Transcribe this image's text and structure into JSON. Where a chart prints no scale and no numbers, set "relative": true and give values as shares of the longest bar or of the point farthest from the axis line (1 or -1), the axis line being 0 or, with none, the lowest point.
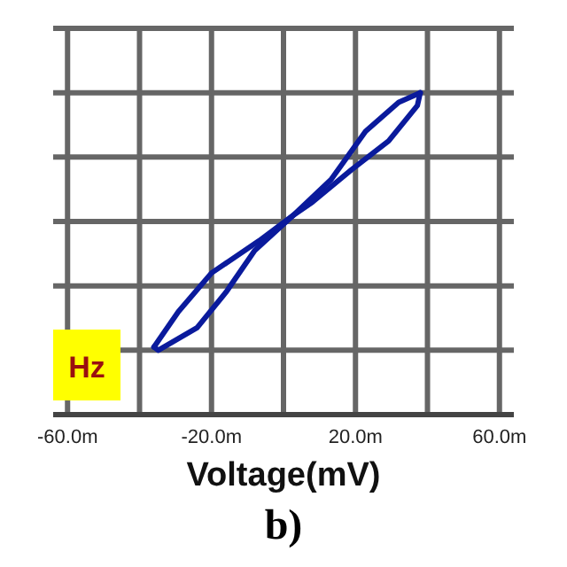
{
  "chart_data": {
    "type": "line",
    "xlabel": "Voltage(mV)",
    "relative": true,
    "grid": true,
    "marker": "none",
    "line_style": "solid",
    "xlim": [
      -64,
      64
    ],
    "xticks": [
      {
        "value": -60,
        "label": "-60.0m"
      },
      {
        "value": -40,
        "label": null
      },
      {
        "value": -20,
        "label": "-20.0m"
      },
      {
        "value": 0,
        "label": null
      },
      {
        "value": 20,
        "label": "20.0m"
      },
      {
        "value": 40,
        "label": null
      },
      {
        "value": 60,
        "label": "60.0m"
      }
    ],
    "series": [
      {
        "color": "#0a1a9c",
        "x": [
          -36,
          -29.2,
          -20,
          -6.8,
          2.8,
          13.2,
          22.8,
          32,
          38
        ],
        "values": [
          0.21,
          0.32,
          0.44,
          0.54,
          0.62,
          0.73,
          0.88,
          0.97,
          1
        ]
      },
      {
        "color": "#0a1a9c",
        "x": [
          -36,
          -34.8,
          -24,
          -16,
          -8,
          2.8,
          8,
          18.8,
          29.2,
          37.2,
          38
        ],
        "values": [
          0.21,
          0.2,
          0.27,
          0.38,
          0.51,
          0.62,
          0.66,
          0.76,
          0.85,
          0.96,
          1
        ]
      }
    ],
    "annotations": [
      "Hz",
      "b)"
    ]
  }
}
